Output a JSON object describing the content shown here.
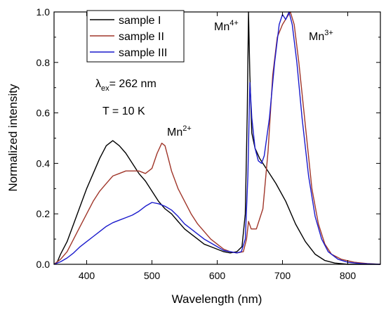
{
  "chart_data": {
    "type": "line",
    "xlabel": "Wavelength (nm)",
    "ylabel": "Normalized intensity",
    "xlim": [
      350,
      850
    ],
    "ylim": [
      0,
      1.0
    ],
    "xticks": [
      400,
      500,
      600,
      700,
      800
    ],
    "yticks": [
      0.0,
      0.2,
      0.4,
      0.6,
      0.8,
      1.0
    ],
    "xtick_labels": [
      "400",
      "500",
      "600",
      "700",
      "800"
    ],
    "ytick_labels": [
      "0.0",
      "0.2",
      "0.4",
      "0.6",
      "0.8",
      "1.0"
    ],
    "grid": false,
    "legend_position": "top-left",
    "series": [
      {
        "name": "sample I",
        "color": "#000000",
        "points": [
          [
            350,
            0.0
          ],
          [
            355,
            0.01
          ],
          [
            360,
            0.04
          ],
          [
            370,
            0.09
          ],
          [
            380,
            0.16
          ],
          [
            390,
            0.23
          ],
          [
            400,
            0.3
          ],
          [
            410,
            0.36
          ],
          [
            420,
            0.42
          ],
          [
            430,
            0.47
          ],
          [
            440,
            0.49
          ],
          [
            450,
            0.47
          ],
          [
            460,
            0.44
          ],
          [
            470,
            0.4
          ],
          [
            480,
            0.36
          ],
          [
            490,
            0.33
          ],
          [
            500,
            0.29
          ],
          [
            510,
            0.25
          ],
          [
            520,
            0.22
          ],
          [
            530,
            0.2
          ],
          [
            540,
            0.17
          ],
          [
            550,
            0.14
          ],
          [
            560,
            0.12
          ],
          [
            570,
            0.1
          ],
          [
            580,
            0.08
          ],
          [
            590,
            0.07
          ],
          [
            600,
            0.06
          ],
          [
            610,
            0.05
          ],
          [
            620,
            0.045
          ],
          [
            630,
            0.05
          ],
          [
            638,
            0.07
          ],
          [
            643,
            0.2
          ],
          [
            646,
            0.6
          ],
          [
            648,
            1.0
          ],
          [
            650,
            0.75
          ],
          [
            653,
            0.52
          ],
          [
            658,
            0.46
          ],
          [
            665,
            0.42
          ],
          [
            675,
            0.38
          ],
          [
            690,
            0.32
          ],
          [
            705,
            0.25
          ],
          [
            720,
            0.16
          ],
          [
            735,
            0.09
          ],
          [
            750,
            0.04
          ],
          [
            765,
            0.015
          ],
          [
            780,
            0.005
          ],
          [
            800,
            0.0
          ],
          [
            850,
            0.0
          ]
        ]
      },
      {
        "name": "sample II",
        "color": "#a0362a",
        "points": [
          [
            350,
            0.0
          ],
          [
            360,
            0.02
          ],
          [
            370,
            0.05
          ],
          [
            380,
            0.1
          ],
          [
            390,
            0.15
          ],
          [
            400,
            0.2
          ],
          [
            410,
            0.25
          ],
          [
            420,
            0.29
          ],
          [
            430,
            0.32
          ],
          [
            440,
            0.35
          ],
          [
            450,
            0.36
          ],
          [
            460,
            0.37
          ],
          [
            470,
            0.37
          ],
          [
            480,
            0.37
          ],
          [
            490,
            0.36
          ],
          [
            500,
            0.38
          ],
          [
            508,
            0.44
          ],
          [
            515,
            0.48
          ],
          [
            520,
            0.47
          ],
          [
            525,
            0.42
          ],
          [
            530,
            0.37
          ],
          [
            540,
            0.3
          ],
          [
            550,
            0.25
          ],
          [
            560,
            0.2
          ],
          [
            570,
            0.16
          ],
          [
            580,
            0.13
          ],
          [
            590,
            0.1
          ],
          [
            600,
            0.08
          ],
          [
            610,
            0.06
          ],
          [
            620,
            0.05
          ],
          [
            630,
            0.045
          ],
          [
            640,
            0.05
          ],
          [
            645,
            0.1
          ],
          [
            648,
            0.17
          ],
          [
            652,
            0.14
          ],
          [
            660,
            0.14
          ],
          [
            670,
            0.22
          ],
          [
            678,
            0.45
          ],
          [
            685,
            0.75
          ],
          [
            692,
            0.9
          ],
          [
            700,
            0.95
          ],
          [
            707,
            0.98
          ],
          [
            712,
            1.0
          ],
          [
            718,
            0.95
          ],
          [
            725,
            0.8
          ],
          [
            735,
            0.55
          ],
          [
            745,
            0.3
          ],
          [
            755,
            0.16
          ],
          [
            765,
            0.08
          ],
          [
            775,
            0.04
          ],
          [
            790,
            0.02
          ],
          [
            810,
            0.008
          ],
          [
            830,
            0.003
          ],
          [
            850,
            0.0
          ]
        ]
      },
      {
        "name": "sample III",
        "color": "#1a1acc",
        "points": [
          [
            350,
            0.0
          ],
          [
            360,
            0.01
          ],
          [
            370,
            0.025
          ],
          [
            380,
            0.045
          ],
          [
            390,
            0.07
          ],
          [
            400,
            0.09
          ],
          [
            410,
            0.11
          ],
          [
            420,
            0.13
          ],
          [
            430,
            0.15
          ],
          [
            440,
            0.165
          ],
          [
            450,
            0.175
          ],
          [
            460,
            0.185
          ],
          [
            470,
            0.195
          ],
          [
            480,
            0.21
          ],
          [
            490,
            0.23
          ],
          [
            500,
            0.245
          ],
          [
            510,
            0.24
          ],
          [
            520,
            0.23
          ],
          [
            530,
            0.215
          ],
          [
            540,
            0.19
          ],
          [
            550,
            0.16
          ],
          [
            560,
            0.14
          ],
          [
            570,
            0.12
          ],
          [
            580,
            0.1
          ],
          [
            590,
            0.085
          ],
          [
            600,
            0.07
          ],
          [
            610,
            0.055
          ],
          [
            620,
            0.05
          ],
          [
            630,
            0.045
          ],
          [
            637,
            0.05
          ],
          [
            643,
            0.1
          ],
          [
            647,
            0.35
          ],
          [
            650,
            0.72
          ],
          [
            653,
            0.58
          ],
          [
            658,
            0.46
          ],
          [
            663,
            0.41
          ],
          [
            668,
            0.4
          ],
          [
            672,
            0.43
          ],
          [
            680,
            0.58
          ],
          [
            688,
            0.8
          ],
          [
            695,
            0.95
          ],
          [
            700,
            0.99
          ],
          [
            705,
            0.97
          ],
          [
            710,
            1.0
          ],
          [
            715,
            0.95
          ],
          [
            722,
            0.8
          ],
          [
            730,
            0.58
          ],
          [
            740,
            0.35
          ],
          [
            750,
            0.19
          ],
          [
            760,
            0.1
          ],
          [
            770,
            0.05
          ],
          [
            785,
            0.02
          ],
          [
            800,
            0.008
          ],
          [
            820,
            0.003
          ],
          [
            850,
            0.0
          ]
        ]
      }
    ],
    "annotations": {
      "lambda_symbol": "λ",
      "lambda_sub": "ex",
      "lambda_value": "= 262 nm",
      "temperature": "T = 10 K",
      "mn2_base": "Mn",
      "mn2_sup": "2+",
      "mn4_base": "Mn",
      "mn4_sup": "4+",
      "mn3_base": "Mn",
      "mn3_sup": "3+"
    }
  }
}
